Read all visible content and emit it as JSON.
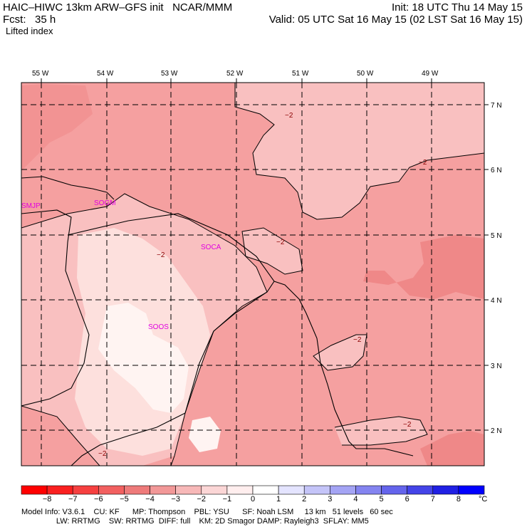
{
  "header": {
    "line1_left": "HAIC–HIWC 13km ARW–GFS init   NCAR/MMM",
    "line1_right": "Init: 18 UTC Thu 14 May 15",
    "line2_left": "Fcst:   35 h",
    "line2_right": "Valid: 05 UTC Sat 16 May 15 (02 LST Sat 16 May 15)",
    "field": "Lifted index"
  },
  "map": {
    "lon_labels": [
      "55 W",
      "54 W",
      "53 W",
      "52 W",
      "51 W",
      "50 W",
      "49 W"
    ],
    "lat_labels": [
      "7 N",
      "6 N",
      "5 N",
      "4 N",
      "3 N",
      "2 N"
    ],
    "stations": [
      "SMJP",
      "SOGM",
      "SOCA",
      "SOOS"
    ],
    "contour_label": "−2",
    "colors": {
      "lvl_m3": "#f5a0a0",
      "lvl_m2": "#f9c0c0",
      "lvl_m1": "#fde0dd",
      "lvl_0": "#fff4f2",
      "lvl_m4": "#ef8888"
    }
  },
  "colorbar": {
    "labels": [
      "−8",
      "−7",
      "−6",
      "−5",
      "−4",
      "−3",
      "−2",
      "−1",
      "0",
      "1",
      "2",
      "3",
      "4",
      "5",
      "6",
      "7",
      "8"
    ],
    "unit": "°C",
    "colors": [
      "#ff0000",
      "#fa2020",
      "#f64040",
      "#f26060",
      "#ee7a7a",
      "#f29898",
      "#f7b8b8",
      "#fbd6d6",
      "#ffeeee",
      "#ffffff",
      "#e4e4ff",
      "#c4c4f8",
      "#a4a4f4",
      "#8484f0",
      "#6464ec",
      "#4444e8",
      "#2020e4",
      "#0000ff"
    ]
  },
  "footer": {
    "line1": "Model Info: V3.6.1    CU: KF      MP: Thompson    PBL: YSU      SF: Noah LSM     13 km   51 levels   60 sec",
    "line2": "                LW: RRTMG    SW: RRTMG  DIFF: full    KM: 2D Smagor DAMP: Rayleigh3  SFLAY: MM5"
  }
}
